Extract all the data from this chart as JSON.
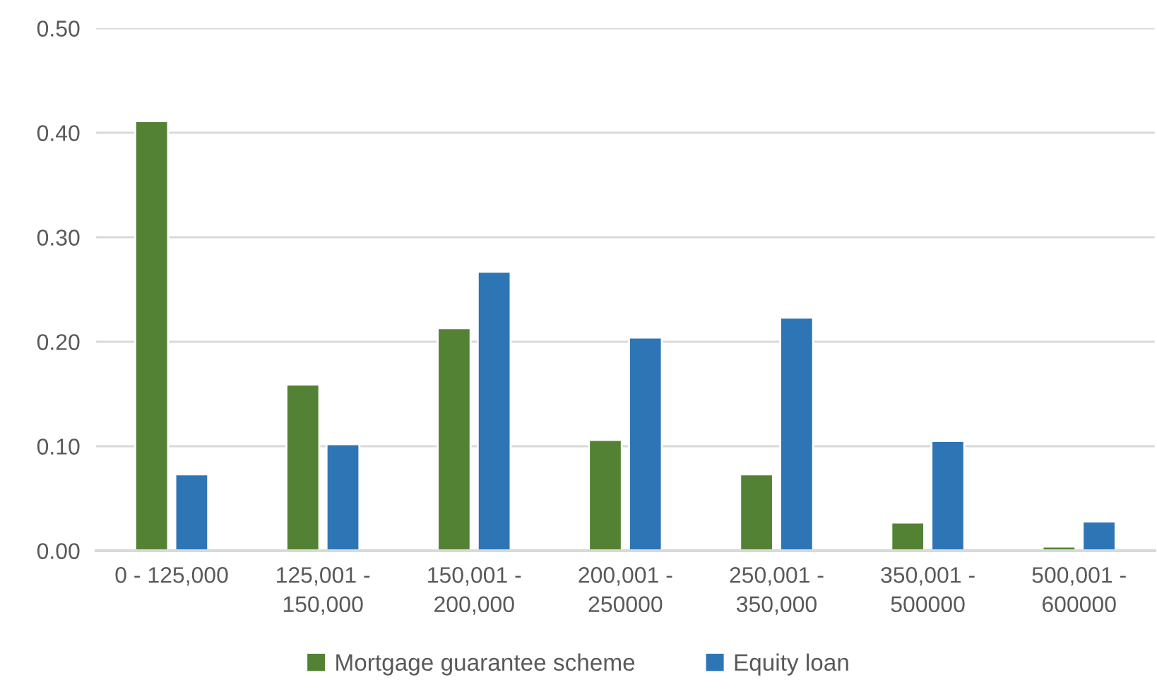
{
  "chart_data": {
    "type": "bar",
    "categories": [
      "0 - 125,000",
      "125,001 -\n150,000",
      "150,001 -\n200,000",
      "200,001 -\n250000",
      "250,001 -\n350,000",
      "350,001 -\n500000",
      "500,001 -\n600000"
    ],
    "series": [
      {
        "name": "Mortgage guarantee scheme",
        "color": "#548235",
        "values": [
          0.411,
          0.159,
          0.213,
          0.106,
          0.073,
          0.027,
          0.004
        ]
      },
      {
        "name": "Equity loan",
        "color": "#2e75b6",
        "values": [
          0.073,
          0.102,
          0.267,
          0.204,
          0.223,
          0.105,
          0.028
        ]
      }
    ],
    "ylim": [
      0,
      0.5
    ],
    "yticks": [
      {
        "value": 0,
        "label": "0.00"
      },
      {
        "value": 0.1,
        "label": "0.10"
      },
      {
        "value": 0.2,
        "label": "0.20"
      },
      {
        "value": 0.3,
        "label": "0.30"
      },
      {
        "value": 0.4,
        "label": "0.40"
      },
      {
        "value": 0.5,
        "label": "0.50"
      }
    ],
    "grid": "y",
    "legend": "bottom"
  }
}
